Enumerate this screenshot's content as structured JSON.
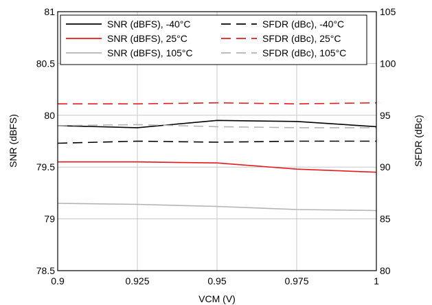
{
  "chart_data": {
    "type": "line",
    "xlabel": "VCM (V)",
    "ylabel_left": "SNR (dBFS)",
    "ylabel_right": "SFDR (dBc)",
    "xlim": [
      0.9,
      1.0
    ],
    "ylim_left": [
      78.5,
      81
    ],
    "ylim_right": [
      80,
      105
    ],
    "x_ticks": [
      "0.9",
      "0.925",
      "0.95",
      "0.975",
      "1"
    ],
    "y_left_ticks": [
      "78.5",
      "79",
      "79.5",
      "80",
      "80.5",
      "81"
    ],
    "y_right_ticks": [
      "80",
      "85",
      "90",
      "95",
      "100",
      "105"
    ],
    "grid": true,
    "legend_position": "top",
    "x": [
      0.9,
      0.925,
      0.95,
      0.975,
      1.0
    ],
    "series": [
      {
        "name": "SNR (dBFS), -40°C",
        "axis": "left",
        "color": "#000000",
        "dash": "solid",
        "values": [
          79.9,
          79.88,
          79.95,
          79.94,
          79.89
        ]
      },
      {
        "name": "SFDR (dBc), -40°C",
        "axis": "right",
        "color": "#000000",
        "dash": "dashed",
        "values": [
          92.3,
          92.5,
          92.4,
          92.5,
          92.5
        ]
      },
      {
        "name": "SNR (dBFS), 25°C",
        "axis": "left",
        "color": "#e41a1c",
        "dash": "solid",
        "values": [
          79.55,
          79.55,
          79.54,
          79.48,
          79.45
        ]
      },
      {
        "name": "SFDR (dBc), 25°C",
        "axis": "right",
        "color": "#e41a1c",
        "dash": "dashed",
        "values": [
          96.1,
          96.1,
          96.2,
          96.1,
          96.2
        ]
      },
      {
        "name": "SNR (dBFS), 105°C",
        "axis": "left",
        "color": "#b3b3b3",
        "dash": "solid",
        "values": [
          79.15,
          79.14,
          79.12,
          79.09,
          79.08
        ]
      },
      {
        "name": "SFDR (dBc), 105°C",
        "axis": "right",
        "color": "#b3b3b3",
        "dash": "dashed",
        "values": [
          94.0,
          94.1,
          93.9,
          93.8,
          93.8
        ]
      }
    ]
  }
}
